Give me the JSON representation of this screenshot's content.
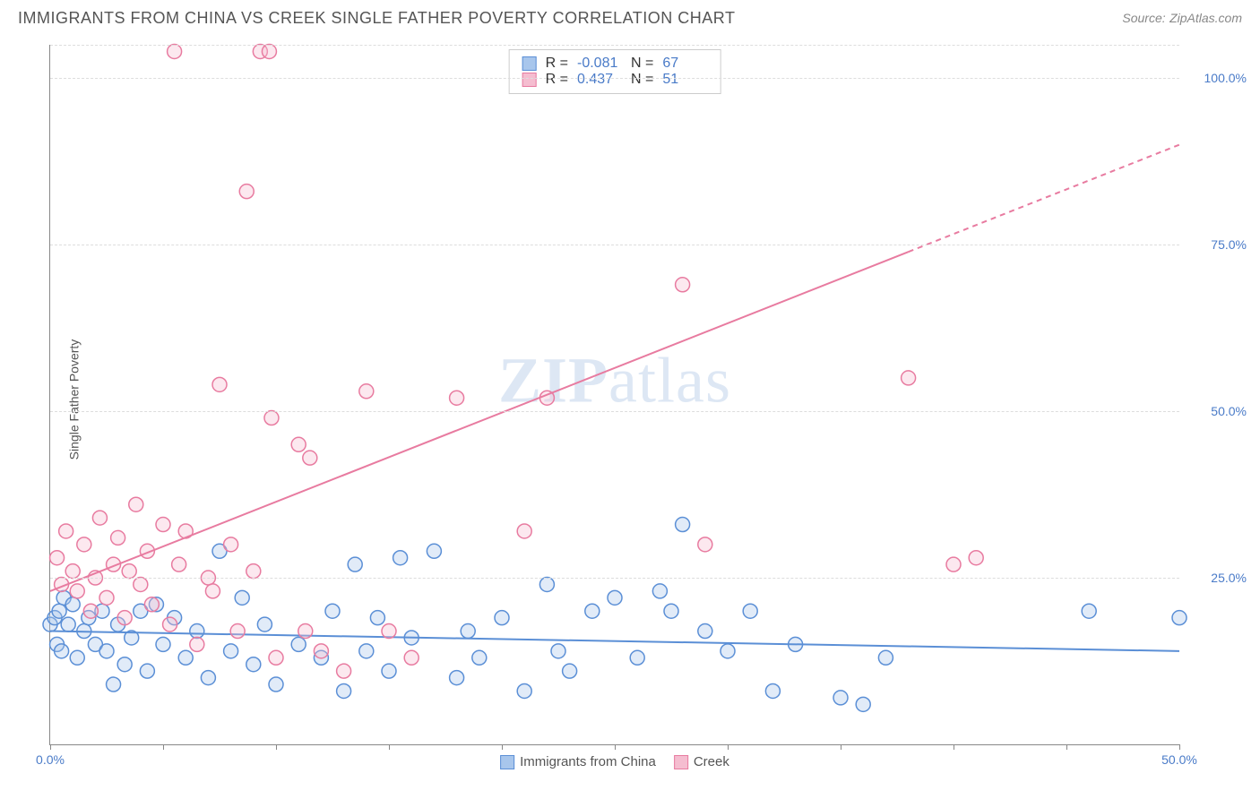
{
  "title": "IMMIGRANTS FROM CHINA VS CREEK SINGLE FATHER POVERTY CORRELATION CHART",
  "source_label": "Source:",
  "source_name": "ZipAtlas.com",
  "watermark_a": "ZIP",
  "watermark_b": "atlas",
  "y_axis_label": "Single Father Poverty",
  "chart": {
    "type": "scatter",
    "xlim": [
      0,
      50
    ],
    "ylim": [
      0,
      105
    ],
    "x_ticks": [
      0,
      5,
      10,
      15,
      20,
      25,
      30,
      35,
      40,
      45,
      50
    ],
    "x_tick_labels": {
      "0": "0.0%",
      "50": "50.0%"
    },
    "y_gridlines": [
      25,
      50,
      75,
      100,
      105
    ],
    "y_tick_labels": {
      "25": "25.0%",
      "50": "50.0%",
      "75": "75.0%",
      "100": "100.0%"
    },
    "background_color": "#ffffff",
    "grid_color": "#dddddd",
    "axis_color": "#888888",
    "marker_radius": 8,
    "marker_stroke_width": 1.5,
    "marker_fill_opacity": 0.35,
    "trend_line_width": 2
  },
  "series": [
    {
      "name": "Immigrants from China",
      "color_stroke": "#5b8fd6",
      "color_fill": "#a8c6ec",
      "R": "-0.081",
      "N": "67",
      "trend": {
        "x1": 0,
        "y1": 17,
        "x2": 50,
        "y2": 14,
        "dash_after_x": 50
      },
      "points": [
        [
          0,
          18
        ],
        [
          0.2,
          19
        ],
        [
          0.3,
          15
        ],
        [
          0.4,
          20
        ],
        [
          0.5,
          14
        ],
        [
          0.6,
          22
        ],
        [
          0.8,
          18
        ],
        [
          1,
          21
        ],
        [
          1.2,
          13
        ],
        [
          1.5,
          17
        ],
        [
          1.7,
          19
        ],
        [
          2,
          15
        ],
        [
          2.3,
          20
        ],
        [
          2.5,
          14
        ],
        [
          2.8,
          9
        ],
        [
          3,
          18
        ],
        [
          3.3,
          12
        ],
        [
          3.6,
          16
        ],
        [
          4,
          20
        ],
        [
          4.3,
          11
        ],
        [
          4.7,
          21
        ],
        [
          5,
          15
        ],
        [
          5.5,
          19
        ],
        [
          6,
          13
        ],
        [
          6.5,
          17
        ],
        [
          7,
          10
        ],
        [
          7.5,
          29
        ],
        [
          8,
          14
        ],
        [
          8.5,
          22
        ],
        [
          9,
          12
        ],
        [
          9.5,
          18
        ],
        [
          10,
          9
        ],
        [
          11,
          15
        ],
        [
          12,
          13
        ],
        [
          12.5,
          20
        ],
        [
          13,
          8
        ],
        [
          13.5,
          27
        ],
        [
          14,
          14
        ],
        [
          14.5,
          19
        ],
        [
          15,
          11
        ],
        [
          15.5,
          28
        ],
        [
          16,
          16
        ],
        [
          17,
          29
        ],
        [
          18,
          10
        ],
        [
          18.5,
          17
        ],
        [
          19,
          13
        ],
        [
          20,
          19
        ],
        [
          21,
          8
        ],
        [
          22,
          24
        ],
        [
          22.5,
          14
        ],
        [
          23,
          11
        ],
        [
          24,
          20
        ],
        [
          25,
          22
        ],
        [
          26,
          13
        ],
        [
          27,
          23
        ],
        [
          27.5,
          20
        ],
        [
          28,
          33
        ],
        [
          29,
          17
        ],
        [
          30,
          14
        ],
        [
          31,
          20
        ],
        [
          32,
          8
        ],
        [
          33,
          15
        ],
        [
          35,
          7
        ],
        [
          36,
          6
        ],
        [
          37,
          13
        ],
        [
          46,
          20
        ],
        [
          50,
          19
        ]
      ]
    },
    {
      "name": "Creek",
      "color_stroke": "#e87ba0",
      "color_fill": "#f5bdd0",
      "R": "0.437",
      "N": "51",
      "trend": {
        "x1": 0,
        "y1": 23,
        "x2": 50,
        "y2": 90,
        "dash_after_x": 38
      },
      "points": [
        [
          0.3,
          28
        ],
        [
          0.5,
          24
        ],
        [
          0.7,
          32
        ],
        [
          1,
          26
        ],
        [
          1.2,
          23
        ],
        [
          1.5,
          30
        ],
        [
          1.8,
          20
        ],
        [
          2,
          25
        ],
        [
          2.2,
          34
        ],
        [
          2.5,
          22
        ],
        [
          2.8,
          27
        ],
        [
          3,
          31
        ],
        [
          3.3,
          19
        ],
        [
          3.5,
          26
        ],
        [
          3.8,
          36
        ],
        [
          4,
          24
        ],
        [
          4.3,
          29
        ],
        [
          4.5,
          21
        ],
        [
          5,
          33
        ],
        [
          5.3,
          18
        ],
        [
          5.5,
          104
        ],
        [
          5.7,
          27
        ],
        [
          6,
          32
        ],
        [
          6.5,
          15
        ],
        [
          7,
          25
        ],
        [
          7.2,
          23
        ],
        [
          7.5,
          54
        ],
        [
          8,
          30
        ],
        [
          8.3,
          17
        ],
        [
          8.7,
          83
        ],
        [
          9,
          26
        ],
        [
          9.3,
          104
        ],
        [
          9.7,
          104
        ],
        [
          9.8,
          49
        ],
        [
          10,
          13
        ],
        [
          11,
          45
        ],
        [
          11.3,
          17
        ],
        [
          11.5,
          43
        ],
        [
          12,
          14
        ],
        [
          13,
          11
        ],
        [
          14,
          53
        ],
        [
          15,
          17
        ],
        [
          16,
          13
        ],
        [
          18,
          52
        ],
        [
          21,
          32
        ],
        [
          22,
          52
        ],
        [
          28,
          69
        ],
        [
          29,
          30
        ],
        [
          38,
          55
        ],
        [
          40,
          27
        ],
        [
          41,
          28
        ]
      ]
    }
  ],
  "legend_labels": {
    "r_label": "R =",
    "n_label": "N ="
  }
}
